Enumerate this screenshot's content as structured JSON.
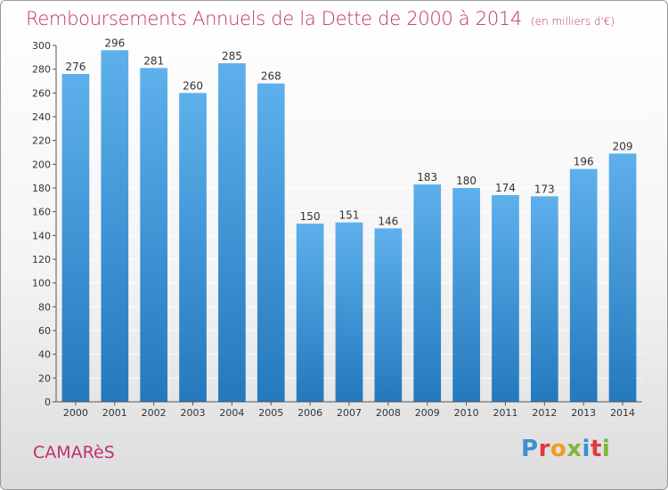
{
  "header": {
    "title": "Remboursements Annuels de la Dette de 2000 à 2014",
    "subtitle": "(en milliers d'€)"
  },
  "footer": {
    "commune": "CAMARèS",
    "logo_letters": [
      "P",
      "r",
      "o",
      "x",
      "i",
      "t",
      "i"
    ],
    "logo_colors": [
      "#3b8fd6",
      "#e0393e",
      "#f39a1e",
      "#7fb83a",
      "#3b8fd6",
      "#e0393e",
      "#7fb83a"
    ]
  },
  "colors": {
    "title": "#c0306d",
    "bar_top": "#5eb0ec",
    "bar_bottom": "#2479bd",
    "grid": "#ffffff",
    "axis": "#555555"
  },
  "chart_data": {
    "type": "bar",
    "title": "Remboursements Annuels de la Dette de 2000 à 2014",
    "subtitle": "(en milliers d'€)",
    "categories": [
      "2000",
      "2001",
      "2002",
      "2003",
      "2004",
      "2005",
      "2006",
      "2007",
      "2008",
      "2009",
      "2010",
      "2011",
      "2012",
      "2013",
      "2014"
    ],
    "values": [
      276,
      296,
      281,
      260,
      285,
      268,
      150,
      151,
      146,
      183,
      180,
      174,
      173,
      196,
      209
    ],
    "ylim": [
      0,
      300
    ],
    "ytick_step": 20,
    "grid": true,
    "data_labels": true,
    "legend": "none"
  }
}
